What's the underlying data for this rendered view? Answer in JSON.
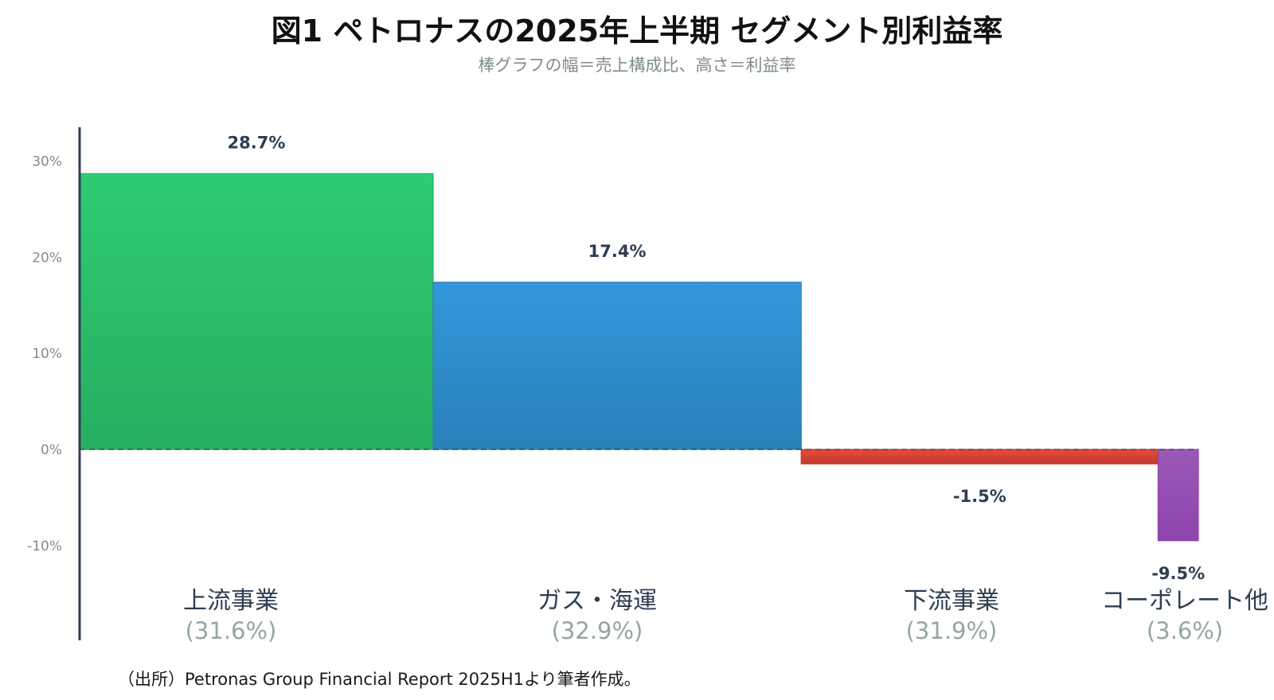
{
  "title": "図1 ペトロナスの2025年上半期 セグメント別利益率",
  "subtitle": "棒グラフの幅＝売上構成比、高さ＝利益率",
  "source": "（出所）Petronas Group Financial Report 2025H1より筆者作成。",
  "chart_data": {
    "type": "bar",
    "title": "図1 ペトロナスの2025年上半期 セグメント別利益率",
    "subtitle": "棒グラフの幅＝売上構成比、高さ＝利益率",
    "xlabel": "",
    "ylabel": "",
    "ylim": [
      -10,
      30
    ],
    "yticks": [
      30,
      20,
      10,
      0,
      -10
    ],
    "ytick_labels": [
      "30%",
      "20%",
      "10%",
      "0%",
      "-10%"
    ],
    "categories": [
      "上流事業",
      "ガス・海運",
      "下流事業",
      "コーポレート他"
    ],
    "share_labels": [
      "(31.6%)",
      "(32.9%)",
      "(31.9%)",
      "(3.6%)"
    ],
    "shares": [
      31.6,
      32.9,
      31.9,
      3.6
    ],
    "values": [
      28.7,
      17.4,
      -1.5,
      -9.5
    ],
    "value_labels": [
      "28.7%",
      "17.4%",
      "-1.5%",
      "-9.5%"
    ],
    "colors": [
      "#2ecc71",
      "#3498db",
      "#e74c3c",
      "#9b59b6"
    ],
    "colors_dark": [
      "#27ae60",
      "#2980b9",
      "#c0392b",
      "#8e44ad"
    ],
    "grid": false,
    "zero_line": "dashed",
    "legend": "none"
  }
}
